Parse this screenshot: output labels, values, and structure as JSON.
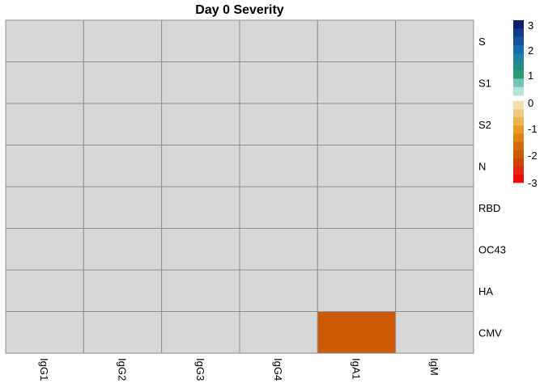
{
  "chart_data": {
    "type": "heatmap",
    "title": "Day 0 Severity",
    "columns": [
      "IgG1",
      "IgG2",
      "IgG3",
      "IgG4",
      "IgA1",
      "IgM"
    ],
    "rows": [
      "S",
      "S1",
      "S2",
      "N",
      "RBD",
      "OC43",
      "HA",
      "CMV"
    ],
    "values": [
      [
        0,
        0,
        0,
        0,
        0,
        0
      ],
      [
        0,
        0,
        0,
        0,
        0,
        0
      ],
      [
        0,
        0,
        0,
        0,
        0,
        0
      ],
      [
        0,
        0,
        0,
        0,
        0,
        0
      ],
      [
        0,
        0,
        0,
        0,
        0,
        0
      ],
      [
        0,
        0,
        0,
        0,
        0,
        0
      ],
      [
        0,
        0,
        0,
        0,
        0,
        0
      ],
      [
        0,
        0,
        0,
        0,
        -1.6,
        0
      ]
    ],
    "legend": {
      "position": "right",
      "range": [
        -3,
        3
      ],
      "ticks": [
        3,
        2,
        1,
        0,
        -1,
        -2,
        -3
      ],
      "tick_labels": [
        "3",
        "2",
        "1",
        "0",
        "-1",
        "-2",
        "-3"
      ],
      "positive_colors": [
        "#0b1f6f",
        "#0f3b8c",
        "#1553a1",
        "#1a6bac",
        "#1f82a6",
        "#238e83",
        "#2b9a78",
        "#72c6b6",
        "#b7e1d9"
      ],
      "negative_colors": [
        "#f3deb0",
        "#f0c981",
        "#ebb454",
        "#e69b28",
        "#de8412",
        "#d46d09",
        "#cf5a05",
        "#cd4604",
        "#e3290f",
        "#f20a0a"
      ]
    },
    "neutral_color": "#d7d7d7",
    "grid_color": "#8f8f8f",
    "value_colors": [
      {
        "value": -1.6,
        "color": "#cf5a05"
      }
    ]
  }
}
